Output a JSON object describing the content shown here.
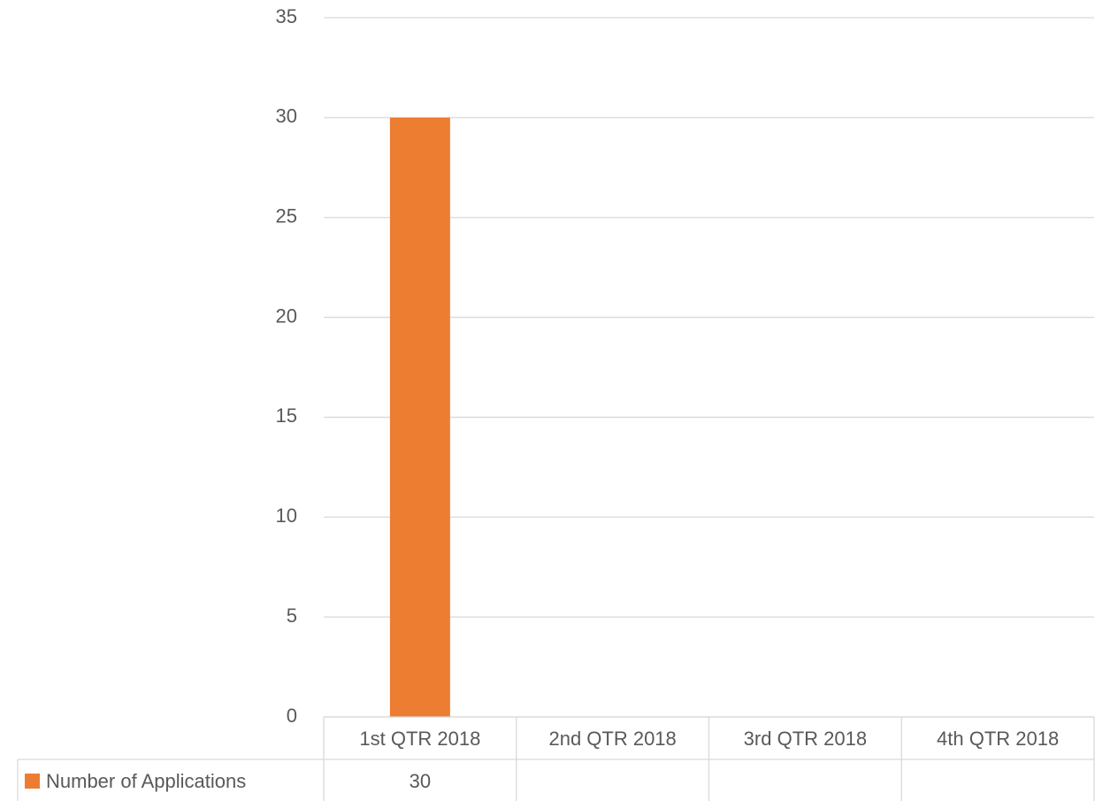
{
  "chart_data": {
    "type": "bar",
    "categories": [
      "1st QTR 2018",
      "2nd QTR 2018",
      "3rd QTR 2018",
      "4th QTR 2018"
    ],
    "series": [
      {
        "name": "Number of Applications",
        "color": "#ed7d31",
        "values": [
          30,
          null,
          null,
          null
        ]
      }
    ],
    "ylim": [
      0,
      35
    ],
    "yticks": [
      0,
      5,
      10,
      15,
      20,
      25,
      30,
      35
    ],
    "grid": true,
    "data_table": true
  }
}
